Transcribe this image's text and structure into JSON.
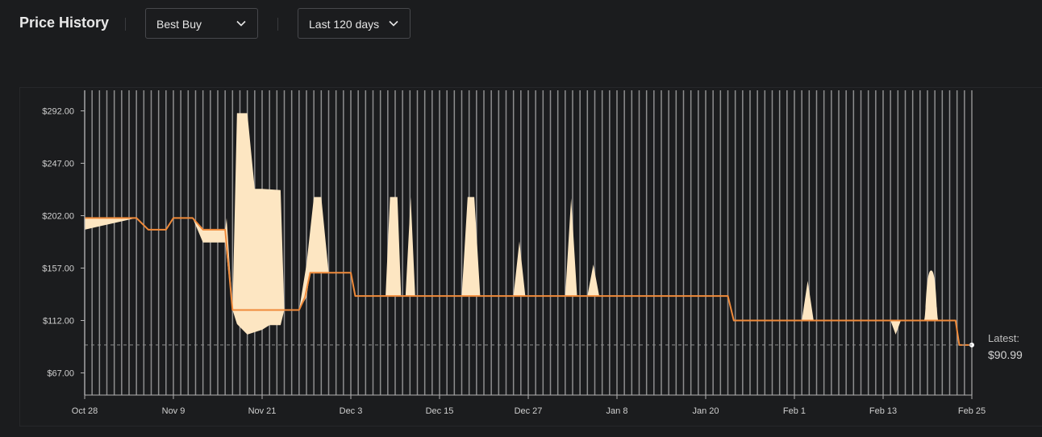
{
  "header": {
    "title": "Price History",
    "store_dropdown": {
      "value": "Best Buy"
    },
    "range_dropdown": {
      "value": "Last 120 days"
    }
  },
  "latest": {
    "label": "Latest:",
    "value": "$90.99"
  },
  "colors": {
    "line": "#f08a3a",
    "fill": "#fde6c2",
    "grid": "#a3a3a3",
    "background": "#1b1c1e"
  },
  "chart_data": {
    "type": "line",
    "title": "Price History",
    "ylim": [
      55,
      312
    ],
    "y_ticks": [
      {
        "value": 292.0,
        "label": "$292.00"
      },
      {
        "value": 247.0,
        "label": "$247.00"
      },
      {
        "value": 202.0,
        "label": "$202.00"
      },
      {
        "value": 157.0,
        "label": "$157.00"
      },
      {
        "value": 112.0,
        "label": "$112.00"
      },
      {
        "value": 67.0,
        "label": "$67.00"
      }
    ],
    "x_ticks": [
      {
        "day": 0,
        "label": "Oct 28"
      },
      {
        "day": 12,
        "label": "Nov 9"
      },
      {
        "day": 24,
        "label": "Nov 21"
      },
      {
        "day": 36,
        "label": "Dec 3"
      },
      {
        "day": 48,
        "label": "Dec 15"
      },
      {
        "day": 60,
        "label": "Dec 27"
      },
      {
        "day": 72,
        "label": "Jan 8"
      },
      {
        "day": 84,
        "label": "Jan 20"
      },
      {
        "day": 96,
        "label": "Feb 1"
      },
      {
        "day": 108,
        "label": "Feb 13"
      },
      {
        "day": 120,
        "label": "Feb 25"
      }
    ],
    "series": [
      {
        "name": "Best Buy",
        "points": [
          [
            0,
            200
          ],
          [
            7,
            200
          ],
          [
            8.6,
            190
          ],
          [
            11,
            190
          ],
          [
            12,
            200
          ],
          [
            14.6,
            200
          ],
          [
            16,
            190
          ],
          [
            19,
            190
          ],
          [
            20,
            121
          ],
          [
            29,
            121
          ],
          [
            29.8,
            132
          ],
          [
            30.5,
            153
          ],
          [
            36,
            153
          ],
          [
            36.6,
            133
          ],
          [
            87,
            133
          ],
          [
            87.8,
            112
          ],
          [
            117.8,
            112
          ],
          [
            118.3,
            90.99
          ],
          [
            120,
            90.99
          ]
        ]
      }
    ],
    "range_band": {
      "upper": [
        [
          0,
          200
        ],
        [
          7,
          200
        ],
        [
          8.6,
          190
        ],
        [
          11,
          190
        ],
        [
          12,
          200
        ],
        [
          14.6,
          200
        ],
        [
          16,
          190
        ],
        [
          19,
          190
        ],
        [
          19.2,
          200
        ],
        [
          20,
          121
        ],
        [
          20.6,
          290
        ],
        [
          22,
          290
        ],
        [
          23,
          225
        ],
        [
          24,
          225
        ],
        [
          26.5,
          224
        ],
        [
          27,
          121
        ],
        [
          29,
          121
        ],
        [
          30,
          160
        ],
        [
          31,
          218
        ],
        [
          32,
          218
        ],
        [
          33,
          153
        ],
        [
          36,
          153
        ],
        [
          36.6,
          133
        ],
        [
          40.7,
          133
        ],
        [
          41.3,
          218
        ],
        [
          42.3,
          218
        ],
        [
          42.8,
          133
        ],
        [
          43.4,
          133
        ],
        [
          44.1,
          218
        ],
        [
          44.7,
          133
        ],
        [
          51,
          133
        ],
        [
          51.8,
          218
        ],
        [
          52.7,
          218
        ],
        [
          53.5,
          133
        ],
        [
          58,
          133
        ],
        [
          58.8,
          180
        ],
        [
          59.6,
          133
        ],
        [
          65,
          133
        ],
        [
          65.8,
          217
        ],
        [
          66.6,
          133
        ],
        [
          68,
          133
        ],
        [
          68.8,
          160
        ],
        [
          69.6,
          133
        ],
        [
          87,
          133
        ],
        [
          87.8,
          112
        ],
        [
          97,
          112
        ],
        [
          97.8,
          146
        ],
        [
          98.6,
          112
        ],
        [
          117.8,
          112
        ],
        [
          118.3,
          90.99
        ],
        [
          120,
          90.99
        ]
      ],
      "lower": [
        [
          0,
          190
        ],
        [
          7,
          200
        ],
        [
          8.6,
          190
        ],
        [
          11,
          190
        ],
        [
          12,
          200
        ],
        [
          14.6,
          200
        ],
        [
          16,
          179
        ],
        [
          19,
          179
        ],
        [
          20,
          121
        ],
        [
          20.6,
          109
        ],
        [
          22,
          100
        ],
        [
          24,
          104
        ],
        [
          25,
          108
        ],
        [
          26.5,
          108
        ],
        [
          27,
          121
        ],
        [
          29,
          121
        ],
        [
          30,
          132
        ],
        [
          30.5,
          153
        ],
        [
          36,
          153
        ],
        [
          36.6,
          133
        ],
        [
          80,
          133
        ],
        [
          87,
          133
        ],
        [
          87.8,
          112
        ],
        [
          109,
          112
        ],
        [
          109.7,
          100
        ],
        [
          110.4,
          112
        ],
        [
          117.8,
          112
        ],
        [
          118.3,
          90.99
        ],
        [
          120,
          90.99
        ]
      ]
    },
    "extra_band_bumps": [
      {
        "x_start": 113.5,
        "x_end": 115.5,
        "top": 155
      }
    ],
    "latest_price": 90.99
  }
}
